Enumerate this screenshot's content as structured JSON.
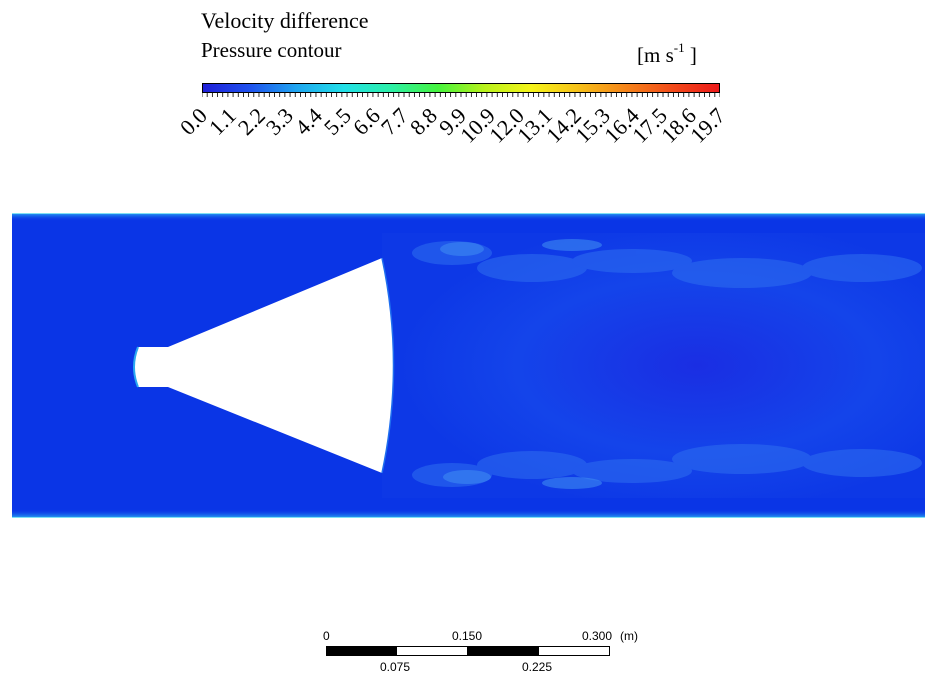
{
  "legend": {
    "title": "Velocity difference",
    "subtitle": "Pressure contour",
    "units_main": "[m s",
    "units_exp": "-1",
    "units_close": " ]",
    "colormap": [
      "#1f1fd8",
      "#1f52ee",
      "#1fa6f0",
      "#22e0e8",
      "#2cf0a8",
      "#45f33e",
      "#b8f21c",
      "#f5f41a",
      "#f6c11a",
      "#f5851a",
      "#f24b1a",
      "#ed1a1a"
    ],
    "tick_labels": [
      "0.0",
      "1.1",
      "2.2",
      "3.3",
      "4.4",
      "5.5",
      "6.6",
      "7.7",
      "8.8",
      "9.9",
      "10.9",
      "12.0",
      "13.1",
      "14.2",
      "15.3",
      "16.4",
      "17.5",
      "18.6",
      "19.7"
    ]
  },
  "field": {
    "background_color": "#0a35e6",
    "object_color": "#ffffff",
    "wall_color": "#1fa6f0"
  },
  "scale_bar": {
    "labels_top": [
      "0",
      "0.150",
      "0.300"
    ],
    "unit": "(m)",
    "labels_bottom": [
      "0.075",
      "0.225"
    ]
  }
}
